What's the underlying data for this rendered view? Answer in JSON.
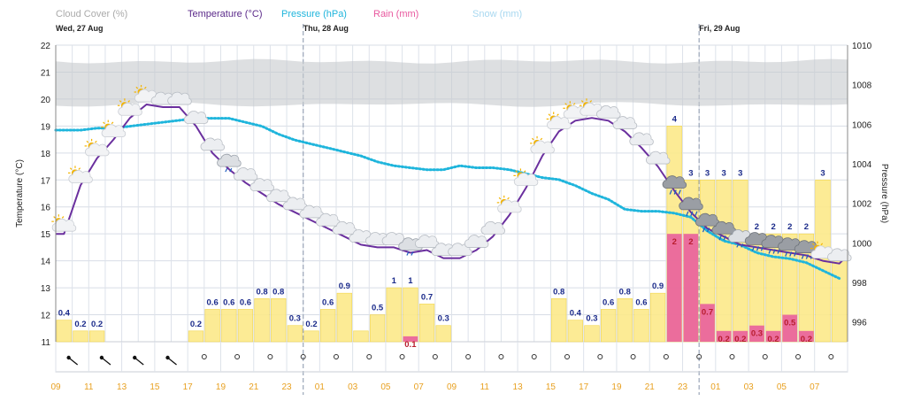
{
  "legend": {
    "cloud": {
      "label": "Cloud Cover (%)",
      "color": "#b0b4b8"
    },
    "temp": {
      "label": "Temperature (°C)",
      "color": "#6a2f9e"
    },
    "pressure": {
      "label": "Pressure (hPa)",
      "color": "#1fb5dc"
    },
    "rain": {
      "label": "Rain (mm)",
      "color": "#e8579e"
    },
    "snow": {
      "label": "Snow (mm)",
      "color": "#a8d8f0"
    }
  },
  "days": [
    {
      "label": "Wed, 27 Aug",
      "start_index": 0
    },
    {
      "label": "Thu, 28 Aug",
      "start_index": 15
    },
    {
      "label": "Fri, 29 Aug",
      "start_index": 39
    }
  ],
  "chart_data": {
    "type": "combo",
    "left_axis": {
      "title": "Temperature (°C)",
      "min": 11,
      "max": 22,
      "ticks": [
        "11",
        "12",
        "13",
        "14",
        "15",
        "16",
        "17",
        "18",
        "19",
        "20",
        "21",
        "22"
      ]
    },
    "right_axis": {
      "title": "Pressure (hPa)",
      "min": 995,
      "max": 1010,
      "ticks": [
        "996",
        "998",
        "1000",
        "1002",
        "1004",
        "1006",
        "1008",
        "1010"
      ]
    },
    "hour_labels": [
      "09",
      "11",
      "13",
      "15",
      "17",
      "19",
      "21",
      "23",
      "01",
      "03",
      "05",
      "07",
      "09",
      "11",
      "13",
      "15",
      "17",
      "19",
      "21",
      "23",
      "01",
      "03",
      "05",
      "07"
    ],
    "hours": [
      "09",
      "10",
      "11",
      "12",
      "13",
      "14",
      "15",
      "16",
      "17",
      "18",
      "19",
      "20",
      "21",
      "22",
      "23",
      "00",
      "01",
      "02",
      "03",
      "04",
      "05",
      "06",
      "07",
      "08",
      "09",
      "10",
      "11",
      "12",
      "13",
      "14",
      "15",
      "16",
      "17",
      "18",
      "19",
      "20",
      "21",
      "22",
      "23",
      "00",
      "01",
      "02",
      "03",
      "04",
      "05",
      "06",
      "07",
      "08"
    ],
    "temperature": [
      15.0,
      16.8,
      17.8,
      18.5,
      19.3,
      19.8,
      19.7,
      19.7,
      19.0,
      18.0,
      17.4,
      16.9,
      16.5,
      16.1,
      15.8,
      15.5,
      15.2,
      14.9,
      14.6,
      14.5,
      14.5,
      14.3,
      14.4,
      14.1,
      14.1,
      14.4,
      14.9,
      15.7,
      16.7,
      17.9,
      18.8,
      19.2,
      19.3,
      19.2,
      18.8,
      18.2,
      17.5,
      16.6,
      15.8,
      15.2,
      14.9,
      14.6,
      14.5,
      14.4,
      14.3,
      14.2,
      14.0,
      13.9
    ],
    "pressure": [
      1005.7,
      1005.7,
      1005.8,
      1005.8,
      1005.9,
      1006.0,
      1006.1,
      1006.2,
      1006.3,
      1006.3,
      1006.3,
      1006.1,
      1005.9,
      1005.5,
      1005.2,
      1005.0,
      1004.8,
      1004.6,
      1004.4,
      1004.1,
      1003.9,
      1003.8,
      1003.7,
      1003.7,
      1003.9,
      1003.8,
      1003.8,
      1003.7,
      1003.5,
      1003.3,
      1003.2,
      1002.9,
      1002.5,
      1002.2,
      1001.7,
      1001.6,
      1001.6,
      1001.5,
      1001.3,
      1000.6,
      1000.1,
      999.9,
      999.5,
      999.3,
      999.2,
      999.0,
      998.6,
      998.2
    ],
    "precip_bars": [
      {
        "i": 0,
        "value": 0.4,
        "label": "0.4"
      },
      {
        "i": 1,
        "value": 0.2,
        "label": "0.2"
      },
      {
        "i": 2,
        "value": 0.2,
        "label": "0.2"
      },
      {
        "i": 8,
        "value": 0.2,
        "label": "0.2"
      },
      {
        "i": 9,
        "value": 0.6,
        "label": "0.6"
      },
      {
        "i": 10,
        "value": 0.6,
        "label": "0.6"
      },
      {
        "i": 11,
        "value": 0.6,
        "label": "0.6"
      },
      {
        "i": 12,
        "value": 0.8,
        "label": "0.8"
      },
      {
        "i": 13,
        "value": 0.8,
        "label": "0.8"
      },
      {
        "i": 14,
        "value": 0.3,
        "label": "0.3"
      },
      {
        "i": 15,
        "value": 0.2,
        "label": "0.2"
      },
      {
        "i": 16,
        "value": 0.6,
        "label": "0.6"
      },
      {
        "i": 17,
        "value": 0.9,
        "label": "0.9"
      },
      {
        "i": 18,
        "value": 0.2,
        "label": ""
      },
      {
        "i": 19,
        "value": 0.5,
        "label": "0.5"
      },
      {
        "i": 20,
        "value": 1.0,
        "label": "1"
      },
      {
        "i": 21,
        "value": 1.0,
        "label": "1"
      },
      {
        "i": 22,
        "value": 0.7,
        "label": "0.7"
      },
      {
        "i": 23,
        "value": 0.3,
        "label": "0.3"
      },
      {
        "i": 30,
        "value": 0.8,
        "label": "0.8"
      },
      {
        "i": 31,
        "value": 0.4,
        "label": "0.4"
      },
      {
        "i": 32,
        "value": 0.3,
        "label": "0.3"
      },
      {
        "i": 33,
        "value": 0.6,
        "label": "0.6"
      },
      {
        "i": 34,
        "value": 0.8,
        "label": "0.8"
      },
      {
        "i": 35,
        "value": 0.6,
        "label": "0.6"
      },
      {
        "i": 36,
        "value": 0.9,
        "label": "0.9"
      },
      {
        "i": 37,
        "value": 4.0,
        "label": "4"
      },
      {
        "i": 38,
        "value": 3.0,
        "label": "3"
      },
      {
        "i": 39,
        "value": 3.0,
        "label": "3"
      },
      {
        "i": 40,
        "value": 3.0,
        "label": "3"
      },
      {
        "i": 41,
        "value": 3.0,
        "label": "3"
      },
      {
        "i": 42,
        "value": 2.0,
        "label": "2"
      },
      {
        "i": 43,
        "value": 2.0,
        "label": "2"
      },
      {
        "i": 44,
        "value": 2.0,
        "label": "2"
      },
      {
        "i": 45,
        "value": 2.0,
        "label": "2"
      },
      {
        "i": 46,
        "value": 3.0,
        "label": "3"
      },
      {
        "i": 47,
        "value": 1.5,
        "label": ""
      }
    ],
    "rain_bars": [
      {
        "i": 21,
        "value": 0.1,
        "label": "0.1"
      },
      {
        "i": 37,
        "value": 2.0,
        "label": "2"
      },
      {
        "i": 38,
        "value": 2.0,
        "label": "2"
      },
      {
        "i": 39,
        "value": 0.7,
        "label": "0.7"
      },
      {
        "i": 40,
        "value": 0.2,
        "label": "0.2"
      },
      {
        "i": 41,
        "value": 0.2,
        "label": "0.2"
      },
      {
        "i": 42,
        "value": 0.3,
        "label": "0.3"
      },
      {
        "i": 43,
        "value": 0.2,
        "label": "0.2"
      },
      {
        "i": 44,
        "value": 0.5,
        "label": "0.5"
      },
      {
        "i": 45,
        "value": 0.2,
        "label": "0.2"
      }
    ],
    "icons": [
      {
        "i": 0,
        "type": "sun-cloud"
      },
      {
        "i": 1,
        "type": "sun-cloud"
      },
      {
        "i": 2,
        "type": "sun-cloud"
      },
      {
        "i": 3,
        "type": "sun-cloud"
      },
      {
        "i": 4,
        "type": "sun-cloud"
      },
      {
        "i": 5,
        "type": "sun-cloud"
      },
      {
        "i": 6,
        "type": "cloud"
      },
      {
        "i": 7,
        "type": "cloud"
      },
      {
        "i": 8,
        "type": "cloud"
      },
      {
        "i": 9,
        "type": "cloud"
      },
      {
        "i": 10,
        "type": "rain-cloud"
      },
      {
        "i": 11,
        "type": "cloud"
      },
      {
        "i": 12,
        "type": "cloud"
      },
      {
        "i": 13,
        "type": "cloud"
      },
      {
        "i": 14,
        "type": "cloud"
      },
      {
        "i": 15,
        "type": "cloud"
      },
      {
        "i": 16,
        "type": "cloud"
      },
      {
        "i": 17,
        "type": "cloud"
      },
      {
        "i": 18,
        "type": "cloud"
      },
      {
        "i": 19,
        "type": "cloud"
      },
      {
        "i": 20,
        "type": "cloud"
      },
      {
        "i": 21,
        "type": "rain-cloud"
      },
      {
        "i": 22,
        "type": "cloud"
      },
      {
        "i": 23,
        "type": "cloud"
      },
      {
        "i": 24,
        "type": "cloud"
      },
      {
        "i": 25,
        "type": "cloud"
      },
      {
        "i": 26,
        "type": "cloud"
      },
      {
        "i": 27,
        "type": "sun-cloud"
      },
      {
        "i": 28,
        "type": "sun-cloud"
      },
      {
        "i": 29,
        "type": "sun-cloud"
      },
      {
        "i": 30,
        "type": "sun-cloud"
      },
      {
        "i": 31,
        "type": "sun-cloud"
      },
      {
        "i": 32,
        "type": "sun-cloud"
      },
      {
        "i": 33,
        "type": "cloud"
      },
      {
        "i": 34,
        "type": "cloud"
      },
      {
        "i": 35,
        "type": "cloud"
      },
      {
        "i": 36,
        "type": "cloud"
      },
      {
        "i": 37,
        "type": "dark-rain-cloud"
      },
      {
        "i": 38,
        "type": "dark-rain-cloud"
      },
      {
        "i": 39,
        "type": "dark-rain-cloud"
      },
      {
        "i": 40,
        "type": "dark-rain-cloud"
      },
      {
        "i": 41,
        "type": "rain-cloud"
      },
      {
        "i": 42,
        "type": "dark-rain-cloud"
      },
      {
        "i": 43,
        "type": "dark-rain-cloud"
      },
      {
        "i": 44,
        "type": "dark-rain-cloud"
      },
      {
        "i": 45,
        "type": "dark-rain-cloud"
      },
      {
        "i": 46,
        "type": "sun-cloud"
      },
      {
        "i": 47,
        "type": "cloud"
      }
    ],
    "wind": [
      {
        "i": 1,
        "type": "arrow"
      },
      {
        "i": 3,
        "type": "arrow"
      },
      {
        "i": 5,
        "type": "arrow"
      },
      {
        "i": 7,
        "type": "arrow"
      },
      {
        "i": 9,
        "type": "calm"
      },
      {
        "i": 11,
        "type": "calm"
      },
      {
        "i": 13,
        "type": "calm"
      },
      {
        "i": 15,
        "type": "calm"
      },
      {
        "i": 17,
        "type": "calm"
      },
      {
        "i": 19,
        "type": "calm"
      },
      {
        "i": 21,
        "type": "calm"
      },
      {
        "i": 23,
        "type": "calm"
      },
      {
        "i": 25,
        "type": "calm"
      },
      {
        "i": 27,
        "type": "calm"
      },
      {
        "i": 29,
        "type": "calm"
      },
      {
        "i": 31,
        "type": "calm"
      },
      {
        "i": 33,
        "type": "calm"
      },
      {
        "i": 35,
        "type": "calm"
      },
      {
        "i": 37,
        "type": "calm"
      },
      {
        "i": 39,
        "type": "calm"
      },
      {
        "i": 41,
        "type": "calm"
      },
      {
        "i": 43,
        "type": "calm"
      },
      {
        "i": 45,
        "type": "calm"
      },
      {
        "i": 47,
        "type": "calm"
      }
    ]
  }
}
